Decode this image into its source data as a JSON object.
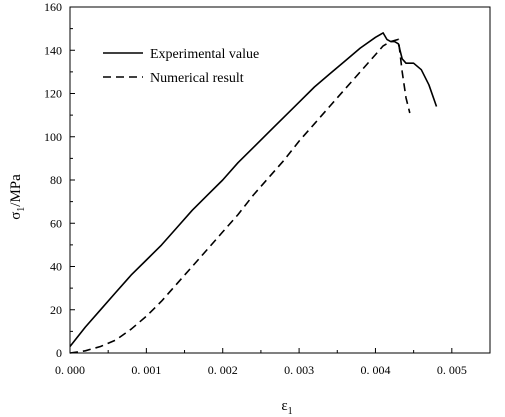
{
  "chart_data": {
    "type": "line",
    "title": "",
    "xlabel": "ε",
    "xlabel_sub": "1",
    "ylabel_main": "σ",
    "ylabel_sub": "1",
    "ylabel_unit": "/MPa",
    "xlim": [
      0,
      0.0055
    ],
    "ylim": [
      0,
      160
    ],
    "x_ticks": [
      0,
      0.001,
      0.002,
      0.003,
      0.004,
      0.005
    ],
    "x_tick_labels": [
      "0. 000",
      "0. 001",
      "0. 002",
      "0. 003",
      "0. 004",
      "0. 005"
    ],
    "y_ticks": [
      0,
      20,
      40,
      60,
      80,
      100,
      120,
      140,
      160
    ],
    "y_tick_labels": [
      "0",
      "20",
      "40",
      "60",
      "80",
      "100",
      "120",
      "140",
      "160"
    ],
    "grid": false,
    "legend_position": "top-left",
    "series": [
      {
        "name": "Experimental value",
        "style": "solid",
        "x": [
          0,
          0.0002,
          0.0004,
          0.0006,
          0.0008,
          0.001,
          0.0012,
          0.0014,
          0.0016,
          0.0018,
          0.002,
          0.0022,
          0.0024,
          0.0026,
          0.0028,
          0.003,
          0.0032,
          0.0034,
          0.0036,
          0.0038,
          0.004,
          0.0041,
          0.00415,
          0.0042,
          0.00425,
          0.0043,
          0.00435,
          0.0044,
          0.0045,
          0.0046,
          0.0047,
          0.0048
        ],
        "y": [
          3,
          12,
          20,
          28,
          36,
          43,
          50,
          58,
          66,
          73,
          80,
          88,
          95,
          102,
          109,
          116,
          123,
          129,
          135,
          141,
          146,
          148,
          145,
          144,
          144,
          143,
          136,
          134,
          134,
          131,
          124,
          114
        ]
      },
      {
        "name": "Numerical result",
        "style": "dashed",
        "x": [
          0,
          0.0002,
          0.0004,
          0.0006,
          0.0008,
          0.001,
          0.0012,
          0.0014,
          0.0016,
          0.0018,
          0.002,
          0.0022,
          0.0024,
          0.0026,
          0.0028,
          0.003,
          0.0032,
          0.0034,
          0.0036,
          0.0038,
          0.004,
          0.0041,
          0.0042,
          0.0043,
          0.00435,
          0.0044,
          0.00445
        ],
        "y": [
          0,
          1,
          3,
          6,
          11,
          17,
          24,
          32,
          40,
          48,
          56,
          64,
          73,
          81,
          89,
          98,
          106,
          114,
          122,
          130,
          138,
          142,
          144,
          145,
          130,
          118,
          111
        ]
      }
    ]
  }
}
